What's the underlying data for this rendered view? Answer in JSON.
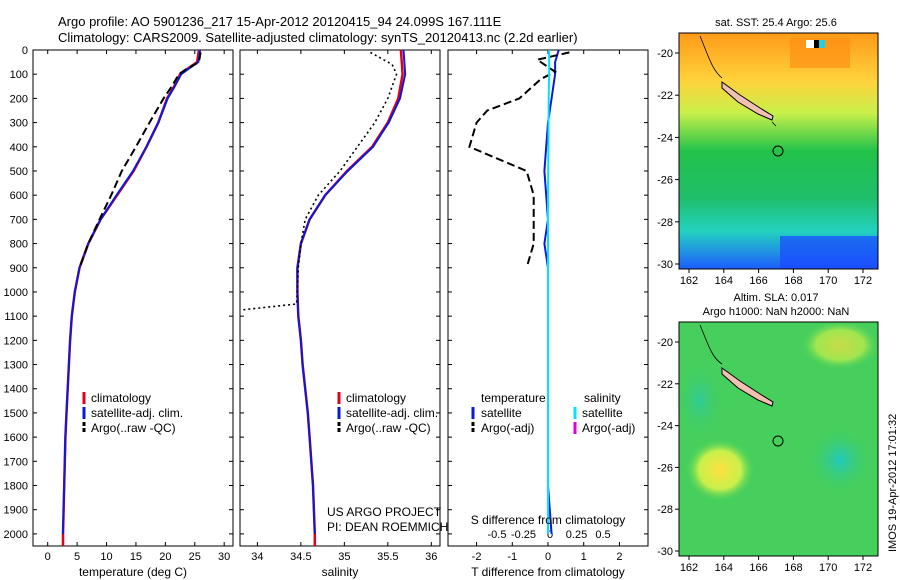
{
  "header": {
    "line1": "Argo profile: AO 5901236_217 15-Apr-2012 20120415_94 24.099S 167.111E",
    "line2": "Climatology: CARS2009. Satellite-adjusted climatology: synTS_20120413.nc (2.2d earlier)"
  },
  "colors": {
    "climatology": "#e0001b",
    "satellite": "#0a1adc",
    "argo": "#000000",
    "salinity_satellite": "#00e5ff",
    "salinity_argo": "#e000e0"
  },
  "depth_axis": {
    "ticks": [
      "0",
      "100",
      "200",
      "300",
      "400",
      "500",
      "600",
      "700",
      "800",
      "900",
      "1000",
      "1100",
      "1200",
      "1300",
      "1400",
      "1500",
      "1600",
      "1700",
      "1800",
      "1900",
      "2000"
    ],
    "range": [
      0,
      2050
    ]
  },
  "panels": {
    "temperature": {
      "xlabel": "temperature (deg C)",
      "xticks": [
        "0",
        "5",
        "10",
        "15",
        "20",
        "25",
        "30"
      ],
      "xrange": [
        -2.5,
        31.5
      ],
      "legend": [
        "climatology",
        "satellite-adj. clim.",
        "Argo(..raw -QC)"
      ]
    },
    "salinity": {
      "xlabel": "salinity",
      "xticks": [
        "34",
        "34.5",
        "35",
        "35.5",
        "36"
      ],
      "xrange": [
        33.8,
        36.1
      ],
      "legend": [
        "climatology",
        "satellite-adj. clim.",
        "Argo(..raw -QC)"
      ],
      "credit1": "US ARGO PROJECT",
      "credit2": "PI: DEAN ROEMMICH"
    },
    "difference": {
      "top_label": "S difference from climatology",
      "top_ticks": [
        "-0.5",
        "-0.25",
        "0",
        "0.25",
        "0.5"
      ],
      "xlabel": "T difference from climatology",
      "xticks": [
        "-2",
        "-1",
        "0",
        "1",
        "2"
      ],
      "xrange": [
        -2.8,
        2.8
      ],
      "legend": {
        "temperature_heading": "temperature",
        "salinity_heading": "salinity",
        "t_satellite": "satellite",
        "t_argo": "Argo(-adj)",
        "s_satellite": "satellite",
        "s_argo": "Argo(-adj)"
      }
    }
  },
  "maps": {
    "sst": {
      "title": "sat. SST: 25.4 Argo: 25.6",
      "yticks": [
        "-20",
        "-22",
        "-24",
        "-26",
        "-28",
        "-30"
      ],
      "xticks": [
        "162",
        "164",
        "166",
        "168",
        "170",
        "172"
      ]
    },
    "sla": {
      "title1": "Altim. SLA: 0.017",
      "title2": "Argo h1000: NaN h2000: NaN",
      "yticks": [
        "-20",
        "-22",
        "-24",
        "-26",
        "-28",
        "-30"
      ],
      "xticks": [
        "162",
        "164",
        "166",
        "168",
        "170",
        "172"
      ]
    },
    "stamp": "IMOS 19-Apr-2012 17:01:32"
  },
  "chart_data": [
    {
      "type": "line",
      "name": "temperature profile",
      "xlabel": "temperature (deg C)",
      "ylabel": "",
      "xlim": [
        -2.5,
        31.5
      ],
      "ylim": [
        2050,
        0
      ],
      "series": [
        {
          "name": "climatology",
          "points": [
            [
              25.7,
              0
            ],
            [
              25.4,
              50
            ],
            [
              23.6,
              80
            ],
            [
              22.5,
              100
            ],
            [
              21.5,
              150
            ],
            [
              20.3,
              200
            ],
            [
              18.8,
              300
            ],
            [
              16.8,
              400
            ],
            [
              14.6,
              500
            ],
            [
              11.8,
              600
            ],
            [
              9.0,
              700
            ],
            [
              6.9,
              800
            ],
            [
              5.4,
              900
            ],
            [
              4.6,
              1000
            ],
            [
              4.1,
              1100
            ],
            [
              3.8,
              1200
            ],
            [
              3.6,
              1300
            ],
            [
              3.4,
              1400
            ],
            [
              3.2,
              1500
            ],
            [
              3.0,
              1600
            ],
            [
              2.9,
              1700
            ],
            [
              2.8,
              1800
            ],
            [
              2.7,
              1900
            ],
            [
              2.6,
              2000
            ],
            [
              2.6,
              2050
            ]
          ]
        },
        {
          "name": "satellite-adj. clim.",
          "points": [
            [
              25.9,
              0
            ],
            [
              25.6,
              50
            ],
            [
              23.8,
              80
            ],
            [
              22.7,
              100
            ],
            [
              21.6,
              150
            ],
            [
              20.4,
              200
            ],
            [
              18.8,
              300
            ],
            [
              16.8,
              400
            ],
            [
              14.5,
              500
            ],
            [
              11.7,
              600
            ],
            [
              9.0,
              700
            ],
            [
              6.9,
              800
            ],
            [
              5.4,
              900
            ],
            [
              4.6,
              1000
            ],
            [
              4.1,
              1100
            ],
            [
              3.8,
              1200
            ],
            [
              3.6,
              1300
            ],
            [
              3.4,
              1400
            ],
            [
              3.2,
              1500
            ],
            [
              3.0,
              1600
            ],
            [
              2.9,
              1700
            ],
            [
              2.8,
              1800
            ],
            [
              2.7,
              1900
            ],
            [
              2.6,
              2000
            ]
          ]
        },
        {
          "name": "Argo(..raw -QC)",
          "points": [
            [
              26.0,
              10
            ],
            [
              25.7,
              50
            ],
            [
              23.5,
              80
            ],
            [
              22.3,
              100
            ],
            [
              21.1,
              150
            ],
            [
              19.7,
              200
            ],
            [
              17.3,
              300
            ],
            [
              15.0,
              400
            ],
            [
              12.6,
              500
            ],
            [
              10.8,
              600
            ],
            [
              8.8,
              700
            ],
            [
              6.9,
              800
            ],
            [
              5.4,
              900
            ]
          ]
        }
      ]
    },
    {
      "type": "line",
      "name": "salinity profile",
      "xlabel": "salinity",
      "ylabel": "",
      "xlim": [
        33.8,
        36.1
      ],
      "ylim": [
        2050,
        0
      ],
      "series": [
        {
          "name": "climatology",
          "points": [
            [
              35.65,
              0
            ],
            [
              35.67,
              100
            ],
            [
              35.62,
              200
            ],
            [
              35.5,
              300
            ],
            [
              35.32,
              400
            ],
            [
              35.03,
              500
            ],
            [
              34.78,
              600
            ],
            [
              34.6,
              700
            ],
            [
              34.5,
              800
            ],
            [
              34.46,
              900
            ],
            [
              34.46,
              1000
            ],
            [
              34.47,
              1100
            ],
            [
              34.5,
              1200
            ],
            [
              34.52,
              1300
            ],
            [
              34.55,
              1400
            ],
            [
              34.58,
              1500
            ],
            [
              34.6,
              1600
            ],
            [
              34.62,
              1700
            ],
            [
              34.64,
              1800
            ],
            [
              34.65,
              1900
            ],
            [
              34.66,
              2000
            ],
            [
              34.66,
              2050
            ]
          ]
        },
        {
          "name": "satellite-adj. clim.",
          "points": [
            [
              35.68,
              0
            ],
            [
              35.7,
              100
            ],
            [
              35.64,
              200
            ],
            [
              35.51,
              300
            ],
            [
              35.33,
              400
            ],
            [
              35.04,
              500
            ],
            [
              34.78,
              600
            ],
            [
              34.6,
              700
            ],
            [
              34.5,
              800
            ],
            [
              34.46,
              900
            ],
            [
              34.46,
              1000
            ],
            [
              34.47,
              1100
            ],
            [
              34.5,
              1200
            ],
            [
              34.52,
              1300
            ],
            [
              34.55,
              1400
            ],
            [
              34.58,
              1500
            ],
            [
              34.6,
              1600
            ],
            [
              34.62,
              1700
            ],
            [
              34.64,
              1800
            ],
            [
              34.65,
              1900
            ],
            [
              34.66,
              2000
            ]
          ]
        },
        {
          "name": "Argo(..raw -QC)",
          "points": [
            [
              35.3,
              10
            ],
            [
              35.55,
              60
            ],
            [
              35.6,
              100
            ],
            [
              35.5,
              200
            ],
            [
              35.35,
              300
            ],
            [
              35.15,
              400
            ],
            [
              34.95,
              500
            ],
            [
              34.7,
              600
            ],
            [
              34.55,
              700
            ],
            [
              34.5,
              800
            ],
            [
              34.47,
              900
            ],
            [
              34.46,
              1000
            ],
            [
              34.45,
              1050
            ],
            [
              33.8,
              1075
            ]
          ]
        }
      ]
    },
    {
      "type": "line",
      "name": "difference from climatology",
      "xlabel": "T difference from climatology",
      "ylabel": "",
      "xlim": [
        -2.8,
        2.8
      ],
      "ylim": [
        2050,
        0
      ],
      "series": [
        {
          "name": "temperature satellite",
          "points": [
            [
              0.3,
              0
            ],
            [
              0.2,
              50
            ],
            [
              0.2,
              100
            ],
            [
              0.1,
              200
            ],
            [
              0.0,
              300
            ],
            [
              -0.1,
              500
            ],
            [
              0.0,
              700
            ],
            [
              -0.1,
              800
            ],
            [
              0.0,
              900
            ],
            [
              0.0,
              1000
            ],
            [
              0.0,
              1200
            ],
            [
              0.0,
              1500
            ],
            [
              0.0,
              1800
            ],
            [
              0.1,
              2000
            ]
          ]
        },
        {
          "name": "temperature Argo(-adj)",
          "points": [
            [
              0.6,
              10
            ],
            [
              -0.3,
              40
            ],
            [
              0.2,
              90
            ],
            [
              -0.2,
              120
            ],
            [
              -0.8,
              200
            ],
            [
              -1.7,
              250
            ],
            [
              -2.0,
              300
            ],
            [
              -2.2,
              400
            ],
            [
              -1.4,
              450
            ],
            [
              -0.6,
              500
            ],
            [
              -0.4,
              600
            ],
            [
              -0.4,
              700
            ],
            [
              -0.4,
              800
            ],
            [
              -0.6,
              900
            ]
          ]
        },
        {
          "name": "salinity satellite",
          "points": [
            [
              0.03,
              0
            ],
            [
              0.03,
              100
            ],
            [
              0.02,
              200
            ],
            [
              0.01,
              400
            ],
            [
              0.0,
              600
            ],
            [
              0.0,
              800
            ],
            [
              0.0,
              1000
            ],
            [
              0.0,
              1500
            ],
            [
              0.0,
              2000
            ]
          ]
        }
      ]
    }
  ]
}
